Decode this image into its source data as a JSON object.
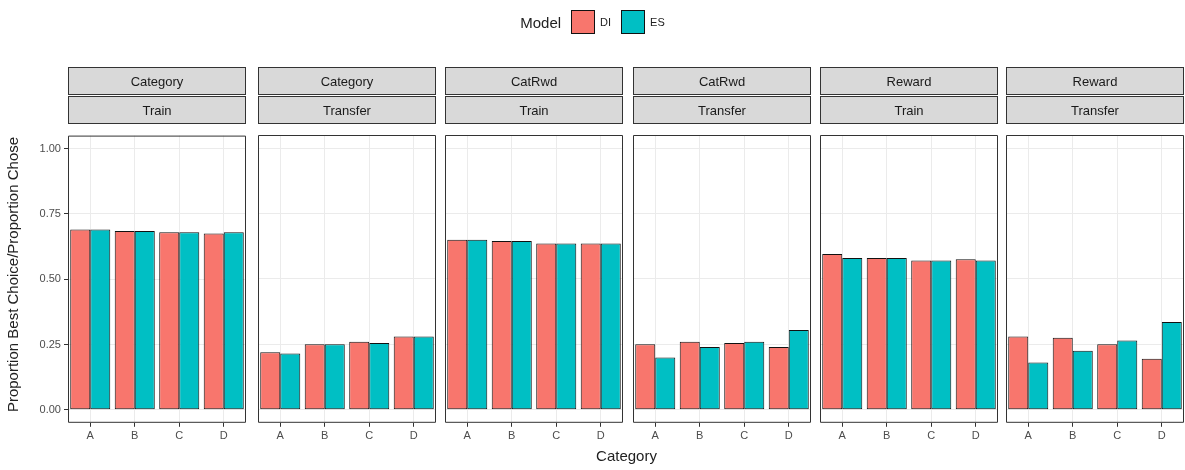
{
  "chart_data": [
    {
      "type": "bar",
      "title": "Category",
      "subtitle": "Train",
      "ylabel": "Proportion Best Choice/Proportion Chose",
      "legend_title": "Model",
      "legend": "top",
      "grid": true,
      "categories": [
        "A",
        "B",
        "C",
        "D"
      ],
      "ylim": [
        -0.05,
        1.05
      ],
      "yticks": [
        {
          "value": 0,
          "label": "0.00"
        },
        {
          "value": 0.25,
          "label": "0.25"
        },
        {
          "value": 0.5,
          "label": "0.50"
        },
        {
          "value": 0.75,
          "label": "0.75"
        },
        {
          "value": 1,
          "label": "1.00"
        }
      ],
      "series": [
        {
          "name": "DI",
          "color": "#f8766d",
          "values": [
            0.69,
            0.685,
            0.68,
            0.675
          ]
        },
        {
          "name": "ES",
          "color": "#00bfc4",
          "values": [
            0.69,
            0.685,
            0.68,
            0.68
          ]
        }
      ]
    },
    {
      "type": "bar",
      "title": "Category",
      "subtitle": "Transfer",
      "grid": true,
      "tick_labels": "x",
      "categories": [
        "A",
        "B",
        "C",
        "D"
      ],
      "ylim": [
        -0.05,
        1.05
      ],
      "yticks": [
        0,
        0.25,
        0.5,
        0.75,
        1
      ],
      "series": [
        {
          "color": "#f8766d",
          "values": [
            0.22,
            0.25,
            0.26,
            0.28
          ]
        },
        {
          "color": "#00bfc4",
          "values": [
            0.215,
            0.25,
            0.255,
            0.28
          ]
        }
      ]
    },
    {
      "type": "bar",
      "title": "CatRwd",
      "subtitle": "Train",
      "xlabel": "Category",
      "grid": true,
      "tick_labels": "x",
      "categories": [
        "A",
        "B",
        "C",
        "D"
      ],
      "ylim": [
        -0.05,
        1.05
      ],
      "yticks": [
        0,
        0.25,
        0.5,
        0.75,
        1
      ],
      "series": [
        {
          "color": "#f8766d",
          "values": [
            0.65,
            0.645,
            0.635,
            0.635
          ]
        },
        {
          "color": "#00bfc4",
          "values": [
            0.65,
            0.645,
            0.635,
            0.635
          ]
        }
      ]
    },
    {
      "type": "bar",
      "title": "CatRwd",
      "subtitle": "Transfer",
      "grid": true,
      "tick_labels": "x",
      "categories": [
        "A",
        "B",
        "C",
        "D"
      ],
      "ylim": [
        -0.05,
        1.05
      ],
      "yticks": [
        0,
        0.25,
        0.5,
        0.75,
        1
      ],
      "series": [
        {
          "color": "#f8766d",
          "values": [
            0.25,
            0.26,
            0.255,
            0.24
          ]
        },
        {
          "color": "#00bfc4",
          "values": [
            0.2,
            0.24,
            0.26,
            0.305
          ]
        }
      ]
    },
    {
      "type": "bar",
      "title": "Reward",
      "subtitle": "Train",
      "grid": true,
      "tick_labels": "x",
      "categories": [
        "A",
        "B",
        "C",
        "D"
      ],
      "ylim": [
        -0.05,
        1.05
      ],
      "yticks": [
        0,
        0.25,
        0.5,
        0.75,
        1
      ],
      "series": [
        {
          "color": "#f8766d",
          "values": [
            0.595,
            0.58,
            0.57,
            0.575
          ]
        },
        {
          "color": "#00bfc4",
          "values": [
            0.58,
            0.58,
            0.57,
            0.57
          ]
        }
      ]
    },
    {
      "type": "bar",
      "title": "Reward",
      "subtitle": "Transfer",
      "grid": true,
      "tick_labels": "x",
      "categories": [
        "A",
        "B",
        "C",
        "D"
      ],
      "ylim": [
        -0.05,
        1.05
      ],
      "yticks": [
        0,
        0.25,
        0.5,
        0.75,
        1
      ],
      "series": [
        {
          "color": "#f8766d",
          "values": [
            0.28,
            0.275,
            0.25,
            0.195
          ]
        },
        {
          "color": "#00bfc4",
          "values": [
            0.18,
            0.225,
            0.265,
            0.335
          ]
        }
      ]
    }
  ]
}
